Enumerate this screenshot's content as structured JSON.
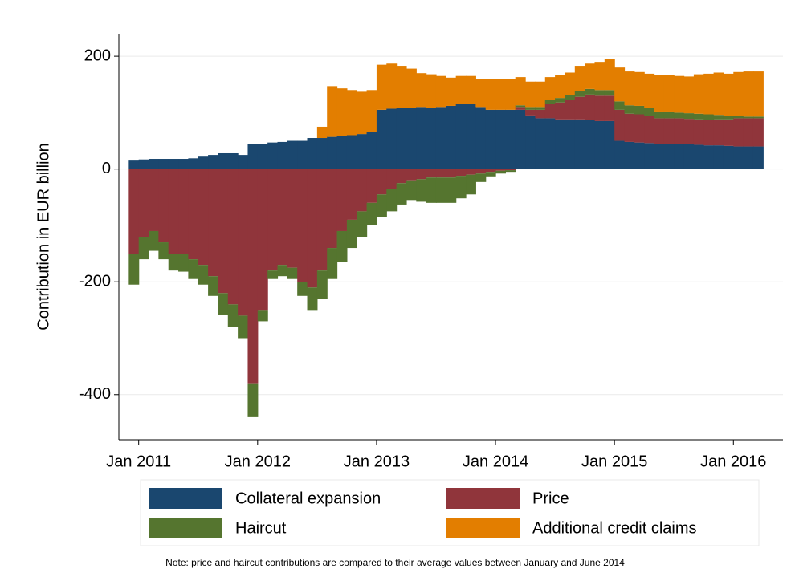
{
  "chart_data": {
    "type": "stacked_bar_area",
    "y_label": "Contribution in EUR billion",
    "note": "Note: price and haircut contributions are compared to their average values between January and June 2014",
    "x": [
      "2010-12",
      "2011-01",
      "2011-02",
      "2011-03",
      "2011-04",
      "2011-05",
      "2011-06",
      "2011-07",
      "2011-08",
      "2011-09",
      "2011-10",
      "2011-11",
      "2011-12",
      "2012-01",
      "2012-02",
      "2012-03",
      "2012-04",
      "2012-05",
      "2012-06",
      "2012-07",
      "2012-08",
      "2012-09",
      "2012-10",
      "2012-11",
      "2012-12",
      "2013-01",
      "2013-02",
      "2013-03",
      "2013-04",
      "2013-05",
      "2013-06",
      "2013-07",
      "2013-08",
      "2013-09",
      "2013-10",
      "2013-11",
      "2013-12",
      "2014-01",
      "2014-02",
      "2014-03",
      "2014-04",
      "2014-05",
      "2014-06",
      "2014-07",
      "2014-08",
      "2014-09",
      "2014-10",
      "2014-11",
      "2014-12",
      "2015-01",
      "2015-02",
      "2015-03",
      "2015-04",
      "2015-05",
      "2015-06",
      "2015-07",
      "2015-08",
      "2015-09",
      "2015-10",
      "2015-11",
      "2015-12",
      "2016-01",
      "2016-02",
      "2016-03"
    ],
    "series": [
      {
        "name": "Collateral expansion",
        "color": "#1a476f",
        "values": [
          15,
          17,
          18,
          18,
          18,
          18,
          19,
          22,
          25,
          28,
          28,
          25,
          45,
          45,
          47,
          48,
          50,
          50,
          55,
          55,
          57,
          58,
          60,
          62,
          65,
          105,
          107,
          108,
          108,
          110,
          108,
          110,
          112,
          115,
          115,
          110,
          105,
          105,
          105,
          105,
          95,
          90,
          90,
          88,
          88,
          88,
          87,
          85,
          85,
          50,
          48,
          47,
          46,
          45,
          45,
          45,
          44,
          43,
          42,
          42,
          41,
          40,
          40,
          40
        ]
      },
      {
        "name": "Price",
        "color": "#90353b",
        "values": [
          -150,
          -120,
          -110,
          -130,
          -150,
          -150,
          -160,
          -170,
          -190,
          -220,
          -240,
          -260,
          -380,
          -250,
          -180,
          -170,
          -175,
          -200,
          -210,
          -180,
          -140,
          -110,
          -90,
          -75,
          -60,
          -45,
          -35,
          -25,
          -20,
          -18,
          -15,
          -15,
          -15,
          -12,
          -10,
          -8,
          -5,
          -3,
          -2,
          5,
          10,
          15,
          25,
          30,
          35,
          40,
          45,
          45,
          45,
          55,
          50,
          50,
          48,
          45,
          45,
          45,
          45,
          45,
          45,
          46,
          47,
          50,
          50,
          50
        ]
      },
      {
        "name": "Haircut",
        "color": "#55752f",
        "values": [
          -55,
          -40,
          -35,
          -30,
          -30,
          -32,
          -35,
          -35,
          -35,
          -38,
          -40,
          -40,
          -60,
          -20,
          -15,
          -20,
          -20,
          -25,
          -40,
          -50,
          -55,
          -55,
          -50,
          -45,
          -40,
          -40,
          -40,
          -38,
          -35,
          -40,
          -45,
          -45,
          -45,
          -40,
          -35,
          -15,
          -8,
          -5,
          -3,
          3,
          5,
          5,
          8,
          8,
          8,
          10,
          10,
          10,
          10,
          15,
          15,
          15,
          15,
          12,
          12,
          10,
          10,
          10,
          10,
          8,
          6,
          4,
          3,
          3
        ]
      },
      {
        "name": "Additional credit claims",
        "color": "#e37e00",
        "values": [
          0,
          0,
          0,
          0,
          0,
          0,
          0,
          0,
          0,
          0,
          0,
          0,
          0,
          0,
          0,
          0,
          0,
          0,
          0,
          20,
          90,
          85,
          80,
          75,
          75,
          80,
          80,
          75,
          70,
          60,
          60,
          55,
          50,
          50,
          50,
          50,
          55,
          55,
          55,
          50,
          45,
          45,
          40,
          40,
          40,
          45,
          45,
          50,
          55,
          60,
          60,
          60,
          60,
          65,
          65,
          65,
          65,
          70,
          72,
          75,
          75,
          78,
          80,
          80
        ]
      }
    ],
    "xlim": [
      "2010-11",
      "2016-06"
    ],
    "xticks": [
      {
        "value": "2011-01",
        "label": "Jan 2011"
      },
      {
        "value": "2012-01",
        "label": "Jan 2012"
      },
      {
        "value": "2013-01",
        "label": "Jan 2013"
      },
      {
        "value": "2014-01",
        "label": "Jan 2014"
      },
      {
        "value": "2015-01",
        "label": "Jan 2015"
      },
      {
        "value": "2016-01",
        "label": "Jan 2016"
      }
    ],
    "ylim": [
      -480,
      240
    ],
    "yticks": [
      -400,
      -200,
      0,
      200
    ],
    "grid": true
  }
}
